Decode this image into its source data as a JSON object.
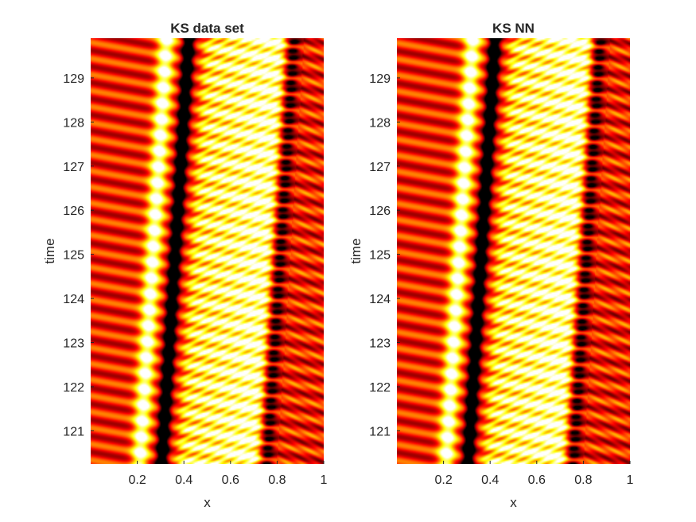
{
  "chart_data": [
    {
      "type": "heatmap",
      "title": "KS data set",
      "xlabel": "x",
      "ylabel": "time",
      "xlim": [
        0,
        1
      ],
      "ylim": [
        120.25,
        129.9
      ],
      "x_ticks": [
        0.2,
        0.4,
        0.6,
        0.8,
        1
      ],
      "x_tick_labels": [
        "0.2",
        "0.4",
        "0.6",
        "0.8",
        "1"
      ],
      "y_ticks": [
        121,
        122,
        123,
        124,
        125,
        126,
        127,
        128,
        129
      ],
      "y_tick_labels": [
        "121",
        "122",
        "123",
        "124",
        "125",
        "126",
        "127",
        "128",
        "129"
      ],
      "colormap": "hot",
      "features": {
        "bright_band_x": [
          0.19,
          0.23
        ],
        "dark_band_x": [
          0.29,
          0.32
        ],
        "striped_region_x": [
          0.37,
          0.72
        ],
        "front_x": [
          0.71,
          0.8
        ],
        "stripe_period_time": 0.36
      }
    },
    {
      "type": "heatmap",
      "title": "KS NN",
      "xlabel": "x",
      "ylabel": "time",
      "xlim": [
        0,
        1
      ],
      "ylim": [
        120.25,
        129.9
      ],
      "x_ticks": [
        0.2,
        0.4,
        0.6,
        0.8,
        1
      ],
      "x_tick_labels": [
        "0.2",
        "0.4",
        "0.6",
        "0.8",
        "1"
      ],
      "y_ticks": [
        121,
        122,
        123,
        124,
        125,
        126,
        127,
        128,
        129
      ],
      "y_tick_labels": [
        "121",
        "122",
        "123",
        "124",
        "125",
        "126",
        "127",
        "128",
        "129"
      ],
      "colormap": "hot",
      "features": {
        "bright_band_x": [
          0.19,
          0.23
        ],
        "dark_band_x": [
          0.29,
          0.32
        ],
        "striped_region_x": [
          0.37,
          0.72
        ],
        "front_x": [
          0.71,
          0.8
        ],
        "stripe_period_time": 0.36
      }
    }
  ],
  "colors": {
    "background": "#ffffff",
    "text": "#262626",
    "axis": "#262626"
  }
}
